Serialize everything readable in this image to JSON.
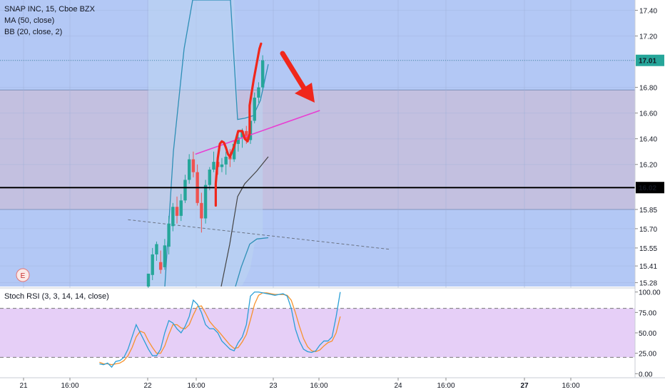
{
  "legend": {
    "title": "SNAP INC, 15, Cboe BZX",
    "ma": "MA (50, close)",
    "bb": "BB (20, close, 2)",
    "rsi": "Stoch RSI (3, 3, 14, 14, close)"
  },
  "earnings_marker": "E",
  "colors": {
    "zone_blue": "#b3c8f5",
    "zone_gray": "#c3c0e0",
    "rsi_band": "#e6cff7",
    "up": "#26a69a",
    "down": "#ef5350",
    "bb": "#2e8fb6",
    "ma": "#444444",
    "trend": "#e83fd2",
    "drawing": "#f0271b",
    "price_label": "#26a69a",
    "k_line": "#2a9fd6",
    "d_line": "#f7922d"
  },
  "chart_data": [
    {
      "type": "candlestick",
      "title": "SNAP INC, 15, Cboe BZX",
      "y_ticks": [
        "17.40",
        "17.20",
        "17.01",
        "16.80",
        "16.60",
        "16.40",
        "16.20",
        "16.02",
        "15.85",
        "15.70",
        "15.55",
        "15.41",
        "15.28"
      ],
      "ylim": [
        15.25,
        17.48
      ],
      "x_ticks": [
        "21",
        "16:00",
        "22",
        "16:00",
        "23",
        "16:00",
        "24",
        "16:00",
        "27",
        "16:00"
      ],
      "current_price": "17.01",
      "horizontal_level": "16.02",
      "zones": [
        {
          "name": "upper",
          "from": 16.78,
          "to": 17.48
        },
        {
          "name": "middle",
          "from": 15.85,
          "to": 16.78
        },
        {
          "name": "lower",
          "from": 15.25,
          "to": 15.85
        }
      ],
      "candles": [
        {
          "o": 15.25,
          "h": 15.35,
          "l": 15.2,
          "c": 15.35
        },
        {
          "o": 15.34,
          "h": 15.55,
          "l": 15.3,
          "c": 15.5
        },
        {
          "o": 15.5,
          "h": 15.6,
          "l": 15.45,
          "c": 15.58
        },
        {
          "o": 15.44,
          "h": 15.53,
          "l": 15.35,
          "c": 15.38
        },
        {
          "o": 15.4,
          "h": 15.62,
          "l": 15.38,
          "c": 15.57
        },
        {
          "o": 15.56,
          "h": 15.8,
          "l": 15.5,
          "c": 15.74
        },
        {
          "o": 15.72,
          "h": 15.9,
          "l": 15.68,
          "c": 15.87
        },
        {
          "o": 15.87,
          "h": 15.95,
          "l": 15.74,
          "c": 15.8
        },
        {
          "o": 15.8,
          "h": 15.97,
          "l": 15.76,
          "c": 15.92
        },
        {
          "o": 15.92,
          "h": 16.12,
          "l": 15.9,
          "c": 16.08
        },
        {
          "o": 16.08,
          "h": 16.28,
          "l": 16.05,
          "c": 16.24
        },
        {
          "o": 16.24,
          "h": 16.3,
          "l": 16.1,
          "c": 16.14
        },
        {
          "o": 16.14,
          "h": 16.2,
          "l": 15.88,
          "c": 15.9
        },
        {
          "o": 15.9,
          "h": 15.98,
          "l": 15.67,
          "c": 15.78
        },
        {
          "o": 15.78,
          "h": 16.08,
          "l": 15.74,
          "c": 16.04
        },
        {
          "o": 16.04,
          "h": 16.18,
          "l": 16.0,
          "c": 16.16
        },
        {
          "o": 16.16,
          "h": 16.3,
          "l": 16.14,
          "c": 16.22
        },
        {
          "o": 16.22,
          "h": 16.28,
          "l": 16.12,
          "c": 16.18
        },
        {
          "o": 16.18,
          "h": 16.25,
          "l": 16.14,
          "c": 16.2
        },
        {
          "o": 16.2,
          "h": 16.3,
          "l": 16.12,
          "c": 16.26
        },
        {
          "o": 16.26,
          "h": 16.32,
          "l": 16.18,
          "c": 16.24
        },
        {
          "o": 16.24,
          "h": 16.38,
          "l": 16.22,
          "c": 16.36
        },
        {
          "o": 16.36,
          "h": 16.44,
          "l": 16.3,
          "c": 16.41
        },
        {
          "o": 16.41,
          "h": 16.48,
          "l": 16.33,
          "c": 16.46
        },
        {
          "o": 16.46,
          "h": 16.5,
          "l": 16.36,
          "c": 16.39
        },
        {
          "o": 16.39,
          "h": 16.58,
          "l": 16.36,
          "c": 16.54
        },
        {
          "o": 16.54,
          "h": 16.76,
          "l": 16.52,
          "c": 16.72
        },
        {
          "o": 16.72,
          "h": 16.84,
          "l": 16.68,
          "c": 16.8
        },
        {
          "o": 16.8,
          "h": 17.05,
          "l": 16.78,
          "c": 17.01
        }
      ],
      "bb_upper": [
        17.48,
        17.48,
        17.48,
        17.48,
        17.48,
        17.48,
        17.48,
        17.48,
        17.48,
        17.48,
        17.48,
        17.48,
        17.48,
        17.48,
        17.48,
        17.48,
        17.48,
        17.48,
        17.48,
        17.48,
        17.48,
        17.48,
        16.55,
        16.56,
        16.58,
        16.62,
        16.7,
        16.82,
        16.98
      ],
      "bb_lower": [
        15.25,
        15.25,
        15.25,
        15.25,
        15.25,
        15.25,
        15.25,
        15.25,
        15.25,
        15.25,
        15.25,
        15.25,
        15.25,
        15.25,
        15.25,
        15.25,
        15.25,
        15.25,
        15.25,
        15.25,
        15.25,
        15.25,
        15.25,
        15.26,
        15.32,
        15.4,
        15.58,
        15.62,
        15.63
      ],
      "ma": [
        null,
        null,
        null,
        null,
        null,
        null,
        null,
        null,
        null,
        null,
        null,
        null,
        null,
        null,
        null,
        null,
        null,
        null,
        null,
        null,
        null,
        null,
        15.28,
        15.48,
        15.68,
        15.82,
        15.98,
        16.12,
        16.26
      ],
      "trendline": {
        "from": {
          "bar": 11.5,
          "y": 16.28
        },
        "to": {
          "bar": 42,
          "y": 16.62
        }
      },
      "dashed_line": {
        "from": {
          "bar": -5,
          "y": 15.77
        },
        "to": {
          "bar": 59,
          "y": 15.54
        }
      },
      "drawing_path": [
        [
          16.5,
          15.88
        ],
        [
          16.5,
          16.05
        ],
        [
          17,
          16.25
        ],
        [
          17.5,
          16.36
        ],
        [
          18,
          16.38
        ],
        [
          18.5,
          16.37
        ],
        [
          19,
          16.33
        ],
        [
          19.5,
          16.28
        ],
        [
          20,
          16.26
        ],
        [
          21,
          16.34
        ],
        [
          22,
          16.46
        ],
        [
          23,
          16.46
        ],
        [
          23.6,
          16.4
        ],
        [
          24.3,
          16.38
        ],
        [
          24.8,
          16.44
        ],
        [
          24.8,
          16.66
        ],
        [
          25.3,
          16.76
        ],
        [
          25.8,
          16.86
        ],
        [
          26.5,
          16.98
        ],
        [
          27.2,
          17.1
        ],
        [
          27.6,
          17.14
        ]
      ]
    },
    {
      "type": "line",
      "title": "Stoch RSI (3, 3, 14, 14, close)",
      "ylim": [
        -5,
        105
      ],
      "y_ticks": [
        "100.00",
        "75.00",
        "50.00",
        "25.00",
        "0.00"
      ],
      "band": [
        20,
        80
      ],
      "x_start_bar": -12,
      "k": [
        12,
        11,
        13,
        8,
        15,
        16,
        20,
        30,
        45,
        60,
        50,
        40,
        30,
        22,
        22,
        30,
        50,
        65,
        62,
        55,
        50,
        58,
        70,
        90,
        85,
        75,
        60,
        55,
        55,
        50,
        40,
        35,
        30,
        28,
        38,
        45,
        60,
        95,
        100,
        100,
        99,
        98,
        97,
        96,
        97,
        98,
        95,
        80,
        55,
        40,
        30,
        27,
        26,
        28,
        35,
        40,
        40,
        45,
        70,
        100
      ],
      "d": [
        14,
        12,
        12,
        11,
        12,
        13,
        16,
        22,
        32,
        45,
        52,
        50,
        40,
        32,
        25,
        25,
        34,
        48,
        60,
        60,
        56,
        55,
        60,
        72,
        82,
        83,
        74,
        64,
        58,
        53,
        47,
        41,
        35,
        31,
        32,
        39,
        48,
        66,
        85,
        96,
        99,
        99,
        98,
        97,
        97,
        97,
        96,
        90,
        75,
        58,
        43,
        33,
        28,
        27,
        29,
        34,
        38,
        40,
        50,
        70
      ]
    }
  ]
}
